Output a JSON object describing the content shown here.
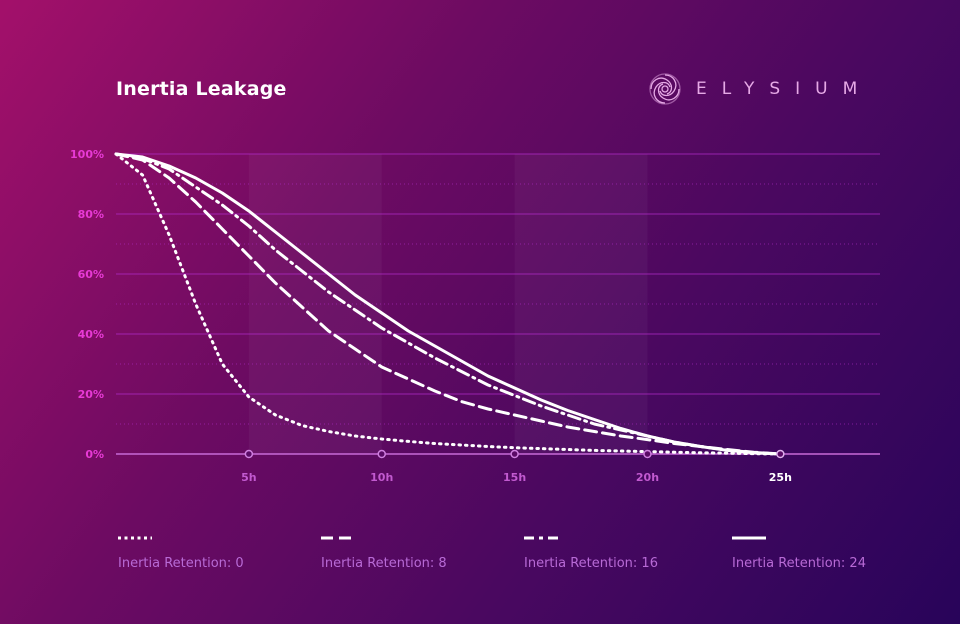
{
  "header": {
    "title": "Inertia Leakage",
    "brand": "ELYSIUM",
    "brand_icon": "spiral-logo-icon"
  },
  "colors": {
    "line": "#ffffff",
    "y_tick": "#e83ad6",
    "x_tick": "#c25ad0",
    "grid": "#b02ac8",
    "legend_text": "#b86ad6"
  },
  "chart_data": {
    "type": "line",
    "title": "Inertia Leakage",
    "xlabel": "",
    "ylabel": "",
    "xlim": [
      0,
      28.75
    ],
    "ylim": [
      0,
      100
    ],
    "x_ticks": [
      "5h",
      "10h",
      "15h",
      "20h",
      "25h"
    ],
    "x_tick_values": [
      5,
      10,
      15,
      20,
      25
    ],
    "active_x_tick": "25h",
    "y_ticks": [
      "0%",
      "20%",
      "40%",
      "60%",
      "80%",
      "100%"
    ],
    "y_tick_values": [
      0,
      20,
      40,
      60,
      80,
      100
    ],
    "grid": true,
    "legend_position": "bottom",
    "x": [
      0,
      1,
      2,
      3,
      4,
      5,
      6,
      7,
      8,
      9,
      10,
      11,
      12,
      13,
      14,
      15,
      16,
      17,
      18,
      19,
      20,
      21,
      22,
      23,
      24,
      25
    ],
    "series": [
      {
        "name": "Inertia Retention: 0",
        "style": "dotted",
        "values": [
          100,
          93,
          73,
          50,
          30,
          19,
          13,
          9.5,
          7.5,
          6,
          5,
          4.2,
          3.5,
          3,
          2.5,
          2.1,
          1.8,
          1.5,
          1.2,
          1,
          0.8,
          0.6,
          0.4,
          0.3,
          0.1,
          0
        ]
      },
      {
        "name": "Inertia Retention: 8",
        "style": "dashed",
        "values": [
          100,
          98,
          92,
          84,
          75,
          66,
          57,
          49,
          41,
          35,
          29,
          25,
          21,
          17.5,
          15,
          13,
          11,
          9,
          7.5,
          6,
          4.8,
          3.5,
          2.5,
          1.5,
          0.6,
          0
        ]
      },
      {
        "name": "Inertia Retention: 16",
        "style": "dash-dot",
        "values": [
          100,
          98.5,
          95,
          89,
          83,
          76,
          68,
          61,
          54,
          48,
          42,
          37,
          32,
          27.5,
          23,
          19.5,
          16,
          13,
          10,
          8,
          6,
          4,
          2.5,
          1.3,
          0.5,
          0
        ]
      },
      {
        "name": "Inertia Retention: 24",
        "style": "solid",
        "values": [
          100,
          99,
          96,
          92,
          87,
          81,
          74,
          67,
          60,
          53,
          47,
          41,
          36,
          31,
          26,
          22,
          18,
          14.5,
          11.5,
          8.5,
          6,
          4,
          2.5,
          1.2,
          0.4,
          0
        ]
      }
    ]
  }
}
